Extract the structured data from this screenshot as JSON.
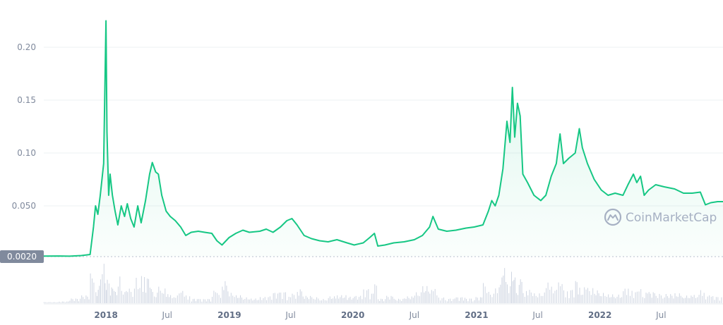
{
  "chart_data": {
    "type": "area",
    "y_scale": "linear",
    "ylim": [
      0.002,
      0.23
    ],
    "y_ticks": [
      {
        "value": 0.05,
        "label": "0.050"
      },
      {
        "value": 0.1,
        "label": "0.10"
      },
      {
        "value": 0.15,
        "label": "0.15"
      },
      {
        "value": 0.2,
        "label": "0.20"
      }
    ],
    "baseline": {
      "value": 0.002,
      "label": "0.0020"
    },
    "xlim": [
      "2017-07-01",
      "2022-12-31"
    ],
    "x_ticks": [
      {
        "date": "2018-01-01",
        "label": "2018",
        "year": true
      },
      {
        "date": "2018-07-01",
        "label": "Jul",
        "year": false
      },
      {
        "date": "2019-01-01",
        "label": "2019",
        "year": true
      },
      {
        "date": "2019-07-01",
        "label": "Jul",
        "year": false
      },
      {
        "date": "2020-01-01",
        "label": "2020",
        "year": true
      },
      {
        "date": "2020-07-01",
        "label": "Jul",
        "year": false
      },
      {
        "date": "2021-01-01",
        "label": "2021",
        "year": true
      },
      {
        "date": "2021-07-01",
        "label": "Jul",
        "year": false
      },
      {
        "date": "2022-01-01",
        "label": "2022",
        "year": true
      },
      {
        "date": "2022-07-01",
        "label": "Jul",
        "year": false
      }
    ],
    "grid": true,
    "line_color": "#16c784",
    "watermark": "CoinMarketCap",
    "series": [
      {
        "points": [
          [
            "2017-07-01",
            0.0025
          ],
          [
            "2017-08-15",
            0.0026
          ],
          [
            "2017-09-15",
            0.0024
          ],
          [
            "2017-10-20",
            0.003
          ],
          [
            "2017-11-15",
            0.004
          ],
          [
            "2017-11-25",
            0.03
          ],
          [
            "2017-12-01",
            0.05
          ],
          [
            "2017-12-08",
            0.042
          ],
          [
            "2017-12-15",
            0.06
          ],
          [
            "2017-12-25",
            0.09
          ],
          [
            "2018-01-01",
            0.225
          ],
          [
            "2018-01-04",
            0.12
          ],
          [
            "2018-01-09",
            0.06
          ],
          [
            "2018-01-13",
            0.08
          ],
          [
            "2018-01-20",
            0.06
          ],
          [
            "2018-01-28",
            0.045
          ],
          [
            "2018-02-05",
            0.032
          ],
          [
            "2018-02-15",
            0.05
          ],
          [
            "2018-02-25",
            0.04
          ],
          [
            "2018-03-05",
            0.052
          ],
          [
            "2018-03-15",
            0.038
          ],
          [
            "2018-03-25",
            0.03
          ],
          [
            "2018-04-05",
            0.05
          ],
          [
            "2018-04-15",
            0.034
          ],
          [
            "2018-04-28",
            0.055
          ],
          [
            "2018-05-10",
            0.08
          ],
          [
            "2018-05-18",
            0.091
          ],
          [
            "2018-05-28",
            0.082
          ],
          [
            "2018-06-05",
            0.08
          ],
          [
            "2018-06-15",
            0.06
          ],
          [
            "2018-06-28",
            0.045
          ],
          [
            "2018-07-10",
            0.04
          ],
          [
            "2018-07-25",
            0.036
          ],
          [
            "2018-08-10",
            0.03
          ],
          [
            "2018-08-25",
            0.022
          ],
          [
            "2018-09-10",
            0.025
          ],
          [
            "2018-10-01",
            0.026
          ],
          [
            "2018-10-20",
            0.025
          ],
          [
            "2018-11-10",
            0.024
          ],
          [
            "2018-11-25",
            0.017
          ],
          [
            "2018-12-10",
            0.013
          ],
          [
            "2018-12-31",
            0.02
          ],
          [
            "2019-01-20",
            0.024
          ],
          [
            "2019-02-10",
            0.027
          ],
          [
            "2019-03-01",
            0.025
          ],
          [
            "2019-04-01",
            0.026
          ],
          [
            "2019-04-20",
            0.028
          ],
          [
            "2019-05-10",
            0.025
          ],
          [
            "2019-06-01",
            0.03
          ],
          [
            "2019-06-20",
            0.036
          ],
          [
            "2019-07-05",
            0.038
          ],
          [
            "2019-07-20",
            0.032
          ],
          [
            "2019-08-10",
            0.022
          ],
          [
            "2019-09-01",
            0.019
          ],
          [
            "2019-09-25",
            0.017
          ],
          [
            "2019-10-20",
            0.016
          ],
          [
            "2019-11-15",
            0.018
          ],
          [
            "2019-12-15",
            0.015
          ],
          [
            "2020-01-05",
            0.013
          ],
          [
            "2020-02-01",
            0.015
          ],
          [
            "2020-02-20",
            0.02
          ],
          [
            "2020-03-05",
            0.024
          ],
          [
            "2020-03-15",
            0.012
          ],
          [
            "2020-04-05",
            0.013
          ],
          [
            "2020-05-01",
            0.015
          ],
          [
            "2020-06-01",
            0.016
          ],
          [
            "2020-07-01",
            0.018
          ],
          [
            "2020-07-25",
            0.022
          ],
          [
            "2020-08-15",
            0.03
          ],
          [
            "2020-08-25",
            0.04
          ],
          [
            "2020-09-10",
            0.028
          ],
          [
            "2020-10-05",
            0.026
          ],
          [
            "2020-11-01",
            0.027
          ],
          [
            "2020-12-01",
            0.029
          ],
          [
            "2020-12-25",
            0.03
          ],
          [
            "2021-01-20",
            0.032
          ],
          [
            "2021-02-05",
            0.045
          ],
          [
            "2021-02-15",
            0.055
          ],
          [
            "2021-02-25",
            0.05
          ],
          [
            "2021-03-08",
            0.06
          ],
          [
            "2021-03-20",
            0.085
          ],
          [
            "2021-04-01",
            0.13
          ],
          [
            "2021-04-10",
            0.11
          ],
          [
            "2021-04-17",
            0.162
          ],
          [
            "2021-04-24",
            0.115
          ],
          [
            "2021-05-02",
            0.147
          ],
          [
            "2021-05-10",
            0.135
          ],
          [
            "2021-05-18",
            0.08
          ],
          [
            "2021-06-01",
            0.072
          ],
          [
            "2021-06-20",
            0.06
          ],
          [
            "2021-07-10",
            0.055
          ],
          [
            "2021-07-25",
            0.06
          ],
          [
            "2021-08-10",
            0.078
          ],
          [
            "2021-08-25",
            0.09
          ],
          [
            "2021-09-05",
            0.118
          ],
          [
            "2021-09-15",
            0.09
          ],
          [
            "2021-10-01",
            0.095
          ],
          [
            "2021-10-20",
            0.1
          ],
          [
            "2021-11-01",
            0.123
          ],
          [
            "2021-11-10",
            0.105
          ],
          [
            "2021-11-25",
            0.09
          ],
          [
            "2021-12-15",
            0.075
          ],
          [
            "2022-01-05",
            0.065
          ],
          [
            "2022-01-25",
            0.06
          ],
          [
            "2022-02-15",
            0.062
          ],
          [
            "2022-03-10",
            0.06
          ],
          [
            "2022-03-25",
            0.07
          ],
          [
            "2022-04-10",
            0.08
          ],
          [
            "2022-04-20",
            0.072
          ],
          [
            "2022-05-01",
            0.078
          ],
          [
            "2022-05-12",
            0.06
          ],
          [
            "2022-05-25",
            0.065
          ],
          [
            "2022-06-15",
            0.07
          ],
          [
            "2022-07-10",
            0.068
          ],
          [
            "2022-08-10",
            0.066
          ],
          [
            "2022-09-05",
            0.062
          ],
          [
            "2022-10-01",
            0.062
          ],
          [
            "2022-10-25",
            0.063
          ],
          [
            "2022-11-09",
            0.051
          ],
          [
            "2022-11-25",
            0.053
          ],
          [
            "2022-12-15",
            0.054
          ],
          [
            "2022-12-31",
            0.054
          ]
        ]
      }
    ]
  }
}
